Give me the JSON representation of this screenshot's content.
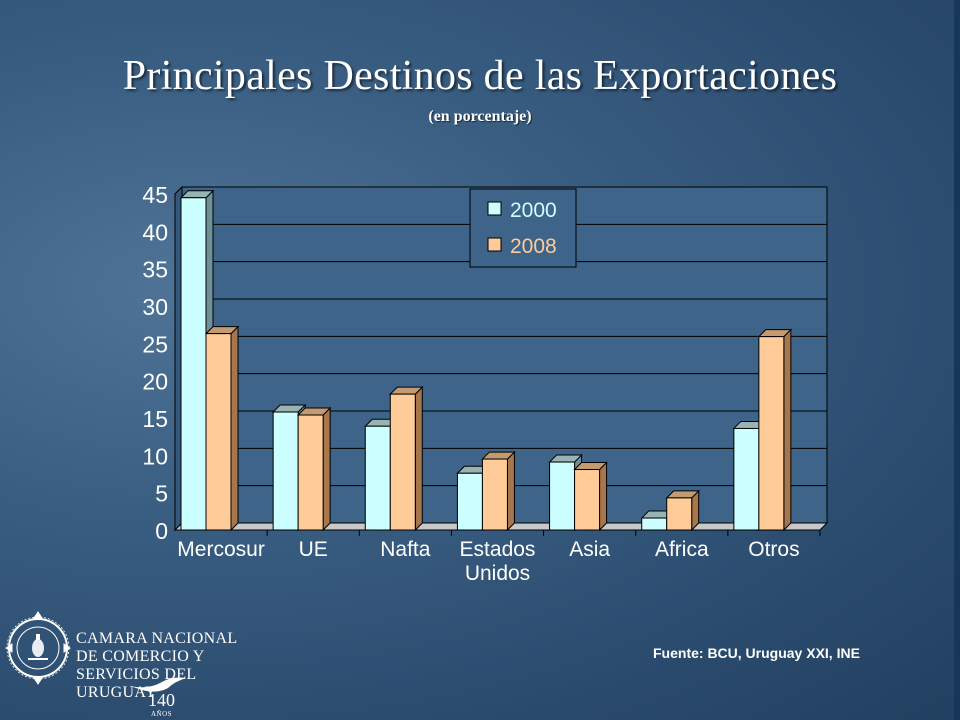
{
  "slide": {
    "title": "Principales Destinos de las Exportaciones",
    "subtitle": "(en porcentaje)",
    "source": "Fuente: BCU, Uruguay XXI, INE"
  },
  "organization": {
    "name_lines": [
      "CAMARA NACIONAL",
      "DE COMERCIO Y",
      "SERVICIOS DEL",
      "URUGUAY"
    ],
    "anniversary_number": "140",
    "anniversary_word": "AÑOS"
  },
  "colors": {
    "series_2000": "#ccffff",
    "series_2008": "#ffcc99",
    "plot_bg": "#3e6489",
    "title": "#ffffff"
  },
  "chart_data": {
    "type": "bar",
    "title": "",
    "categories": [
      "Mercosur",
      "UE",
      "Nafta",
      "Estados\nUnidos",
      "Asia",
      "Africa",
      "Otros"
    ],
    "series": [
      {
        "name": "2000",
        "values": [
          44.5,
          15.8,
          13.9,
          7.6,
          9.1,
          1.6,
          13.6
        ]
      },
      {
        "name": "2008",
        "values": [
          26.3,
          15.4,
          18.2,
          9.5,
          8.1,
          4.3,
          25.9
        ]
      }
    ],
    "y_ticks": [
      "0",
      "5",
      "10",
      "15",
      "20",
      "25",
      "30",
      "35",
      "40",
      "45"
    ],
    "ylim": [
      0,
      45
    ],
    "grid": true,
    "legend_position": "top-center",
    "three_d": true
  }
}
